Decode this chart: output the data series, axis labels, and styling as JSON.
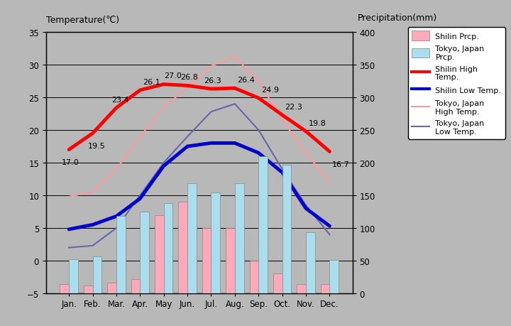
{
  "months": [
    "Jan.",
    "Feb.",
    "Mar.",
    "Apr.",
    "May",
    "Jun.",
    "Jul.",
    "Aug.",
    "Sep.",
    "Oct.",
    "Nov.",
    "Dec."
  ],
  "shilin_high_temp": [
    17.0,
    19.5,
    23.4,
    26.1,
    27.0,
    26.8,
    26.3,
    26.4,
    24.9,
    22.3,
    19.8,
    16.7
  ],
  "shilin_low_temp": [
    4.8,
    5.5,
    6.8,
    9.5,
    14.5,
    17.5,
    18.0,
    18.0,
    16.5,
    13.5,
    8.0,
    5.3
  ],
  "tokyo_high_temp": [
    9.8,
    10.5,
    14.0,
    19.0,
    23.5,
    26.5,
    29.8,
    31.2,
    27.5,
    21.5,
    16.5,
    12.0
  ],
  "tokyo_low_temp": [
    2.0,
    2.3,
    5.0,
    10.0,
    15.0,
    19.0,
    22.8,
    24.0,
    20.0,
    14.0,
    8.5,
    4.0
  ],
  "shilin_precip_mm": [
    14,
    12,
    16,
    22,
    120,
    140,
    100,
    100,
    50,
    30,
    14,
    14
  ],
  "tokyo_precip_mm": [
    52,
    56,
    118,
    125,
    138,
    168,
    154,
    168,
    210,
    197,
    93,
    51
  ],
  "temp_ylim": [
    -5,
    35
  ],
  "precip_ylim": [
    0,
    400
  ],
  "temp_yticks": [
    -5,
    0,
    5,
    10,
    15,
    20,
    25,
    30,
    35
  ],
  "precip_yticks": [
    0,
    50,
    100,
    150,
    200,
    250,
    300,
    350,
    400
  ],
  "shilin_high_color": "#ff0000",
  "shilin_low_color": "#0000cc",
  "tokyo_high_color": "#ff9999",
  "tokyo_low_color": "#6666aa",
  "shilin_precip_color": "#ffaabb",
  "tokyo_precip_color": "#aaddee",
  "bg_color": "#b8b8b8",
  "title_left": "Temperature(℃)",
  "title_right": "Precipitation(mm)"
}
